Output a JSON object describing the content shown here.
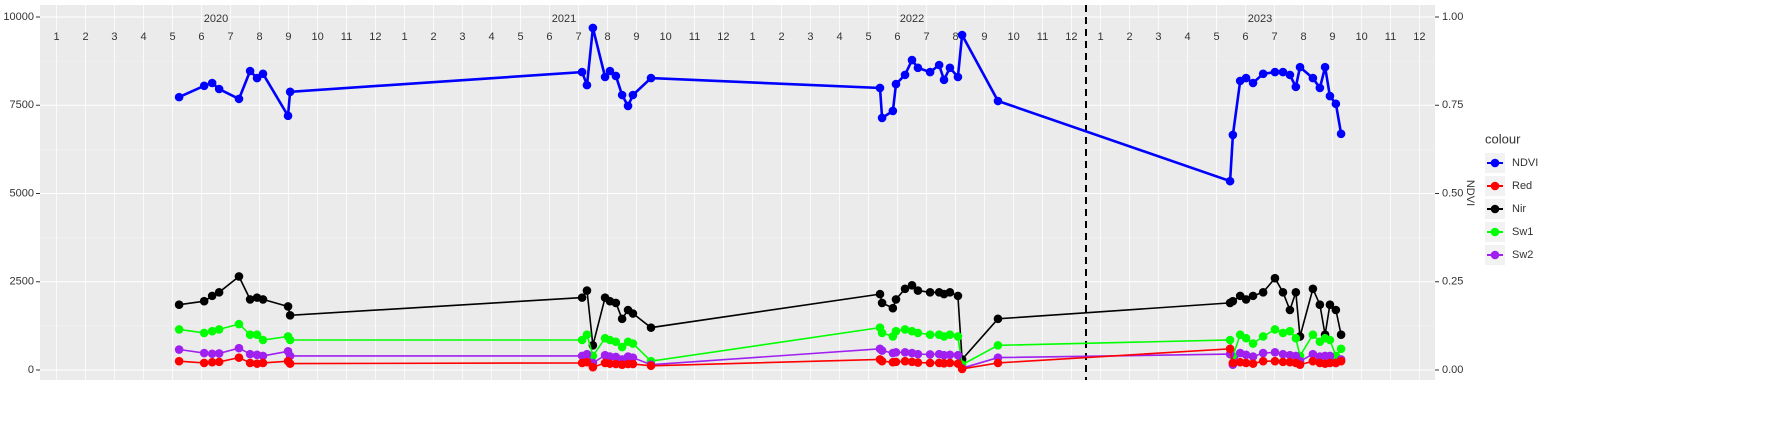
{
  "chart_data": {
    "type": "line",
    "x": [
      2020.394,
      2020.466,
      2020.489,
      2020.509,
      2020.566,
      2020.598,
      2020.618,
      2020.635,
      2020.707,
      2020.713,
      2021.552,
      2021.566,
      2021.583,
      2021.618,
      2021.632,
      2021.649,
      2021.667,
      2021.684,
      2021.698,
      2021.75,
      2022.408,
      2022.414,
      2022.445,
      2022.454,
      2022.48,
      2022.5,
      2022.517,
      2022.552,
      2022.578,
      2022.592,
      2022.609,
      2022.632,
      2022.644,
      2022.747,
      2023.414,
      2023.422,
      2023.443,
      2023.46,
      2023.48,
      2023.509,
      2023.543,
      2023.566,
      2023.586,
      2023.603,
      2023.615,
      2023.652,
      2023.672,
      2023.687,
      2023.701,
      2023.718,
      2023.733
    ],
    "series": [
      {
        "name": "NDVI",
        "color": "#0000ff",
        "axis": "y2",
        "values": [
          0.773,
          0.805,
          0.813,
          0.796,
          0.768,
          0.847,
          0.827,
          0.839,
          0.72,
          0.788,
          0.844,
          0.807,
          0.969,
          0.83,
          0.847,
          0.833,
          0.779,
          0.748,
          0.779,
          0.827,
          0.799,
          0.714,
          0.734,
          0.81,
          0.836,
          0.878,
          0.856,
          0.844,
          0.864,
          0.822,
          0.856,
          0.83,
          0.949,
          0.762,
          0.535,
          0.666,
          0.819,
          0.827,
          0.813,
          0.839,
          0.844,
          0.844,
          0.836,
          0.802,
          0.858,
          0.827,
          0.799,
          0.858,
          0.776,
          0.754,
          0.669
        ]
      },
      {
        "name": "Red",
        "color": "#ff0000",
        "values": [
          250,
          200,
          220,
          230,
          350,
          200,
          180,
          200,
          250,
          180,
          200,
          220,
          80,
          200,
          180,
          170,
          150,
          170,
          170,
          120,
          300,
          250,
          220,
          230,
          250,
          230,
          210,
          200,
          200,
          190,
          200,
          180,
          30,
          200,
          600,
          200,
          220,
          200,
          180,
          250,
          250,
          230,
          220,
          200,
          150,
          250,
          200,
          180,
          200,
          200,
          250
        ]
      },
      {
        "name": "Nir",
        "color": "#000000",
        "values": [
          1850,
          1950,
          2100,
          2200,
          2650,
          2000,
          2050,
          2000,
          1800,
          1550,
          2050,
          2250,
          700,
          2050,
          1950,
          1900,
          1450,
          1700,
          1600,
          1200,
          2150,
          1900,
          1750,
          2000,
          2300,
          2400,
          2250,
          2200,
          2200,
          2150,
          2200,
          2100,
          300,
          1450,
          1900,
          1950,
          2100,
          2000,
          2100,
          2200,
          2600,
          2200,
          1700,
          2200,
          950,
          2300,
          1850,
          1000,
          1850,
          1700,
          1000
        ]
      },
      {
        "name": "Sw1",
        "color": "#00ff00",
        "values": [
          1150,
          1050,
          1100,
          1150,
          1300,
          1000,
          1000,
          850,
          950,
          850,
          850,
          1000,
          400,
          900,
          850,
          800,
          650,
          800,
          750,
          250,
          1200,
          1050,
          950,
          1100,
          1150,
          1100,
          1050,
          1000,
          1000,
          950,
          1000,
          950,
          150,
          700,
          850,
          400,
          1000,
          900,
          750,
          950,
          1150,
          1050,
          1100,
          900,
          400,
          1000,
          800,
          900,
          850,
          400,
          600
        ]
      },
      {
        "name": "Sw2",
        "color": "#a020f0",
        "values": [
          580,
          480,
          460,
          470,
          620,
          450,
          430,
          400,
          530,
          400,
          400,
          450,
          200,
          420,
          380,
          370,
          300,
          380,
          350,
          150,
          600,
          550,
          480,
          500,
          500,
          480,
          450,
          440,
          450,
          420,
          430,
          420,
          50,
          350,
          450,
          150,
          480,
          430,
          380,
          480,
          500,
          450,
          420,
          400,
          250,
          450,
          380,
          400,
          400,
          200,
          300
        ]
      }
    ],
    "xlim": [
      2020,
      2024
    ],
    "ylim": [
      0,
      10000
    ],
    "yticks": [
      0,
      2500,
      5000,
      7500,
      10000
    ],
    "y2lim": [
      0,
      1
    ],
    "y2ticks": [
      {
        "value": 0,
        "label": "0.00"
      },
      {
        "value": 0.25,
        "label": "0.25"
      },
      {
        "value": 0.5,
        "label": "0.50"
      },
      {
        "value": 0.75,
        "label": "0.75"
      },
      {
        "value": 1,
        "label": "1.00"
      }
    ],
    "y2_label": "NDVI",
    "month_ticks": [
      {
        "value": 2020.042,
        "label": "1"
      },
      {
        "value": 2020.125,
        "label": "2"
      },
      {
        "value": 2020.208,
        "label": "3"
      },
      {
        "value": 2020.292,
        "label": "4"
      },
      {
        "value": 2020.375,
        "label": "5"
      },
      {
        "value": 2020.458,
        "label": "6"
      },
      {
        "value": 2020.542,
        "label": "7"
      },
      {
        "value": 2020.625,
        "label": "8"
      },
      {
        "value": 2020.708,
        "label": "9"
      },
      {
        "value": 2020.792,
        "label": "10"
      },
      {
        "value": 2020.875,
        "label": "11"
      },
      {
        "value": 2020.958,
        "label": "12"
      },
      {
        "value": 2021.042,
        "label": "1"
      },
      {
        "value": 2021.125,
        "label": "2"
      },
      {
        "value": 2021.208,
        "label": "3"
      },
      {
        "value": 2021.292,
        "label": "4"
      },
      {
        "value": 2021.375,
        "label": "5"
      },
      {
        "value": 2021.458,
        "label": "6"
      },
      {
        "value": 2021.542,
        "label": "7"
      },
      {
        "value": 2021.625,
        "label": "8"
      },
      {
        "value": 2021.708,
        "label": "9"
      },
      {
        "value": 2021.792,
        "label": "10"
      },
      {
        "value": 2021.875,
        "label": "11"
      },
      {
        "value": 2021.958,
        "label": "12"
      },
      {
        "value": 2022.042,
        "label": "1"
      },
      {
        "value": 2022.125,
        "label": "2"
      },
      {
        "value": 2022.208,
        "label": "3"
      },
      {
        "value": 2022.292,
        "label": "4"
      },
      {
        "value": 2022.375,
        "label": "5"
      },
      {
        "value": 2022.458,
        "label": "6"
      },
      {
        "value": 2022.542,
        "label": "7"
      },
      {
        "value": 2022.625,
        "label": "8"
      },
      {
        "value": 2022.708,
        "label": "9"
      },
      {
        "value": 2022.792,
        "label": "10"
      },
      {
        "value": 2022.875,
        "label": "11"
      },
      {
        "value": 2022.958,
        "label": "12"
      },
      {
        "value": 2023.042,
        "label": "1"
      },
      {
        "value": 2023.125,
        "label": "2"
      },
      {
        "value": 2023.208,
        "label": "3"
      },
      {
        "value": 2023.292,
        "label": "4"
      },
      {
        "value": 2023.375,
        "label": "5"
      },
      {
        "value": 2023.458,
        "label": "6"
      },
      {
        "value": 2023.542,
        "label": "7"
      },
      {
        "value": 2023.625,
        "label": "8"
      },
      {
        "value": 2023.708,
        "label": "9"
      },
      {
        "value": 2023.792,
        "label": "10"
      },
      {
        "value": 2023.875,
        "label": "11"
      },
      {
        "value": 2023.958,
        "label": "12"
      }
    ],
    "year_labels": [
      {
        "value": 2020.5,
        "label": "2020"
      },
      {
        "value": 2021.5,
        "label": "2021"
      },
      {
        "value": 2022.5,
        "label": "2022"
      },
      {
        "value": 2023.5,
        "label": "2023"
      }
    ],
    "vline": 2023,
    "legend_title": "colour",
    "legend": "right",
    "grid": true
  }
}
